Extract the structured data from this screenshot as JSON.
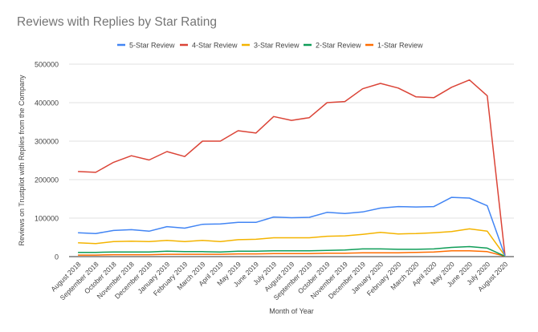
{
  "chart_data": {
    "type": "line",
    "title": "Reviews with Replies by Star Rating",
    "xlabel": "Month of Year",
    "ylabel": "Reviews on Trustpilot with Replies from the Company",
    "ylim": [
      0,
      500000
    ],
    "yticks": [
      "0",
      "100000",
      "200000",
      "300000",
      "400000",
      "500000"
    ],
    "grid": true,
    "legend_position": "top",
    "categories": [
      "August 2018",
      "September 2018",
      "October 2018",
      "November 2018",
      "December 2018",
      "January 2019",
      "February 2019",
      "March 2019",
      "April 2019",
      "May 2019",
      "June 2019",
      "July 2019",
      "August 2019",
      "September 2019",
      "October 2019",
      "November 2019",
      "December 2019",
      "January 2020",
      "February 2020",
      "March 2020",
      "April 2020",
      "May 2020",
      "June 2020",
      "July 2020",
      "August 2020"
    ],
    "series": [
      {
        "name": "5-Star Review",
        "color": "#4285F4",
        "values": [
          62000,
          60000,
          68000,
          70000,
          66000,
          78000,
          74000,
          84000,
          85000,
          89000,
          89000,
          103000,
          101000,
          102000,
          115000,
          112000,
          116000,
          126000,
          130000,
          129000,
          130000,
          154000,
          152000,
          132000,
          2000
        ]
      },
      {
        "name": "4-Star Review",
        "color": "#DB4437",
        "values": [
          221000,
          219000,
          245000,
          262000,
          251000,
          273000,
          260000,
          300000,
          300000,
          327000,
          321000,
          364000,
          354000,
          361000,
          400000,
          403000,
          436000,
          450000,
          438000,
          415000,
          413000,
          440000,
          459000,
          418000,
          3000
        ]
      },
      {
        "name": "3-Star Review",
        "color": "#F4B400",
        "values": [
          36000,
          34000,
          39000,
          40000,
          39000,
          42000,
          39000,
          42000,
          39000,
          44000,
          45000,
          49000,
          49000,
          49000,
          53000,
          54000,
          58000,
          63000,
          59000,
          60000,
          62000,
          65000,
          72000,
          66000,
          2000
        ]
      },
      {
        "name": "2-Star Review",
        "color": "#0F9D58",
        "values": [
          11000,
          11000,
          12000,
          12000,
          12000,
          14000,
          13000,
          13000,
          12000,
          14000,
          14000,
          15000,
          15000,
          15000,
          16000,
          17000,
          20000,
          20000,
          19000,
          19000,
          20000,
          24000,
          26000,
          22000,
          1000
        ]
      },
      {
        "name": "1-Star Review",
        "color": "#FF6D00",
        "values": [
          4000,
          4000,
          5000,
          5000,
          5000,
          6000,
          6000,
          6000,
          6000,
          7000,
          7000,
          8000,
          8000,
          8000,
          9000,
          9000,
          10000,
          10000,
          10000,
          11000,
          12000,
          15000,
          15000,
          13000,
          1000
        ]
      }
    ]
  }
}
